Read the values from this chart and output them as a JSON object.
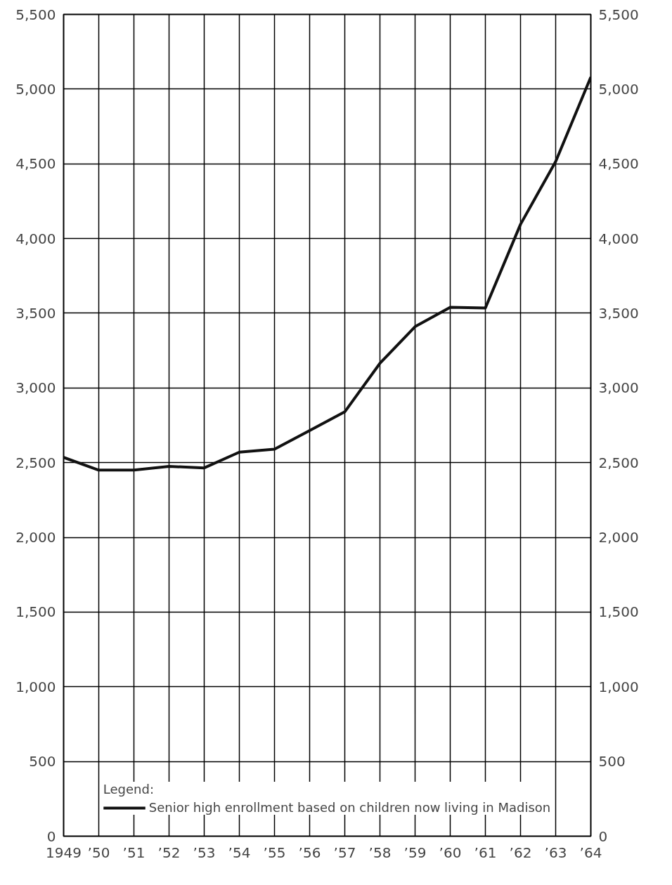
{
  "chart_data": {
    "type": "line",
    "legend_title": "Legend:",
    "legend": "bottom",
    "grid": true,
    "x": [
      1949,
      1950,
      1951,
      1952,
      1953,
      1954,
      1955,
      1956,
      1957,
      1958,
      1959,
      1960,
      1961,
      1962,
      1963,
      1964
    ],
    "series": [
      {
        "name": "Senior high enrollment based on children now living in Madison",
        "color": "#111111",
        "values": [
          2535,
          2450,
          2450,
          2475,
          2465,
          2570,
          2590,
          2715,
          2840,
          3165,
          3410,
          3540,
          3535,
          4095,
          4515,
          5080
        ]
      }
    ],
    "xlim": [
      1949,
      1964
    ],
    "xticks": [
      1949,
      {
        "value": 1950,
        "label": "’50"
      },
      {
        "value": 1951,
        "label": "’51"
      },
      {
        "value": 1952,
        "label": "’52"
      },
      {
        "value": 1953,
        "label": "’53"
      },
      {
        "value": 1954,
        "label": "’54"
      },
      {
        "value": 1955,
        "label": "’55"
      },
      {
        "value": 1956,
        "label": "’56"
      },
      {
        "value": 1957,
        "label": "’57"
      },
      {
        "value": 1958,
        "label": "’58"
      },
      {
        "value": 1959,
        "label": "’59"
      },
      {
        "value": 1960,
        "label": "’60"
      },
      {
        "value": 1961,
        "label": "’61"
      },
      {
        "value": 1962,
        "label": "’62"
      },
      {
        "value": 1963,
        "label": "’63"
      },
      {
        "value": 1964,
        "label": "’64"
      }
    ],
    "ylim": [
      0,
      5500
    ],
    "yticks": [
      0,
      500,
      {
        "value": 1000,
        "label": "1,000"
      },
      {
        "value": 1500,
        "label": "1,500"
      },
      {
        "value": 2000,
        "label": "2,000"
      },
      {
        "value": 2500,
        "label": "2,500"
      },
      {
        "value": 3000,
        "label": "3,000"
      },
      {
        "value": 3500,
        "label": "3,500"
      },
      {
        "value": 4000,
        "label": "4,000"
      },
      {
        "value": 4500,
        "label": "4,500"
      },
      {
        "value": 5000,
        "label": "5,000"
      },
      {
        "value": 5500,
        "label": "5,500"
      }
    ],
    "y2lim": [
      0,
      5500
    ],
    "y2ticks": [
      0,
      500,
      {
        "value": 1000,
        "label": "1,000"
      },
      {
        "value": 1500,
        "label": "1,500"
      },
      {
        "value": 2000,
        "label": "2,000"
      },
      {
        "value": 2500,
        "label": "2,500"
      },
      {
        "value": 3000,
        "label": "3,000"
      },
      {
        "value": 3500,
        "label": "3,500"
      },
      {
        "value": 4000,
        "label": "4,000"
      },
      {
        "value": 4500,
        "label": "4,500"
      },
      {
        "value": 5000,
        "label": "5,000"
      },
      {
        "value": 5500,
        "label": "5,500"
      }
    ],
    "marker": "none",
    "line_style": "solid"
  }
}
